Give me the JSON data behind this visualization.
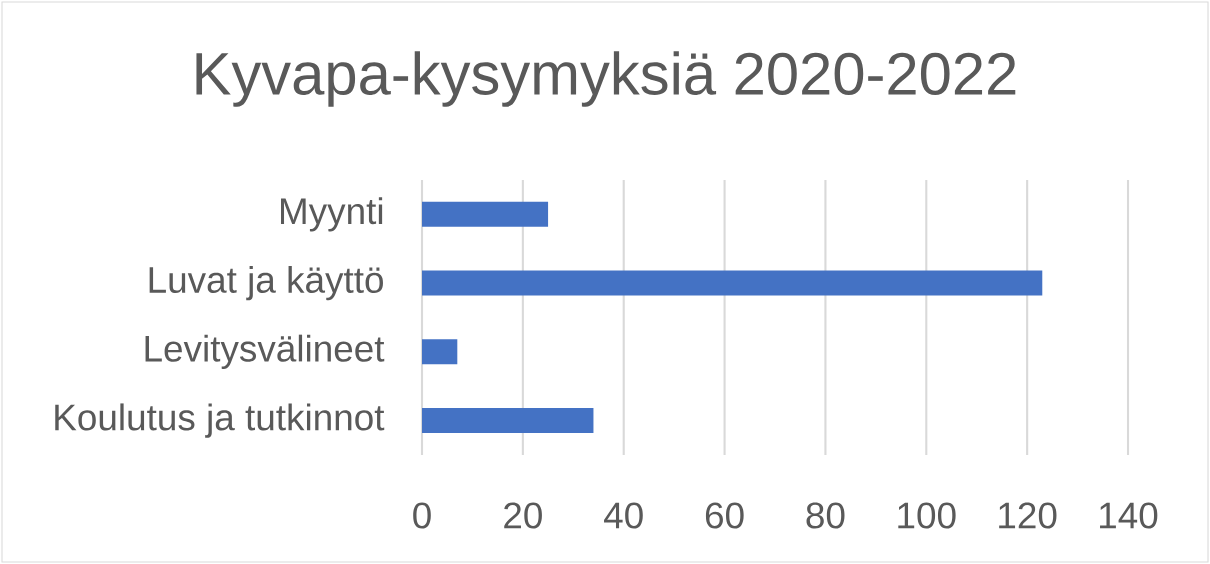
{
  "chart_data": {
    "type": "bar",
    "orientation": "horizontal",
    "title": "Kyvapa-kysymyksiä 2020-2022",
    "categories": [
      "Myynti",
      "Luvat ja käyttö",
      "Levitysvälineet",
      "Koulutus ja tutkinnot"
    ],
    "values": [
      25,
      123,
      7,
      34
    ],
    "color": "#4472c4",
    "xlim": [
      0,
      140
    ],
    "xticks": [
      0,
      20,
      40,
      60,
      80,
      100,
      120,
      140
    ],
    "grid": "x"
  }
}
